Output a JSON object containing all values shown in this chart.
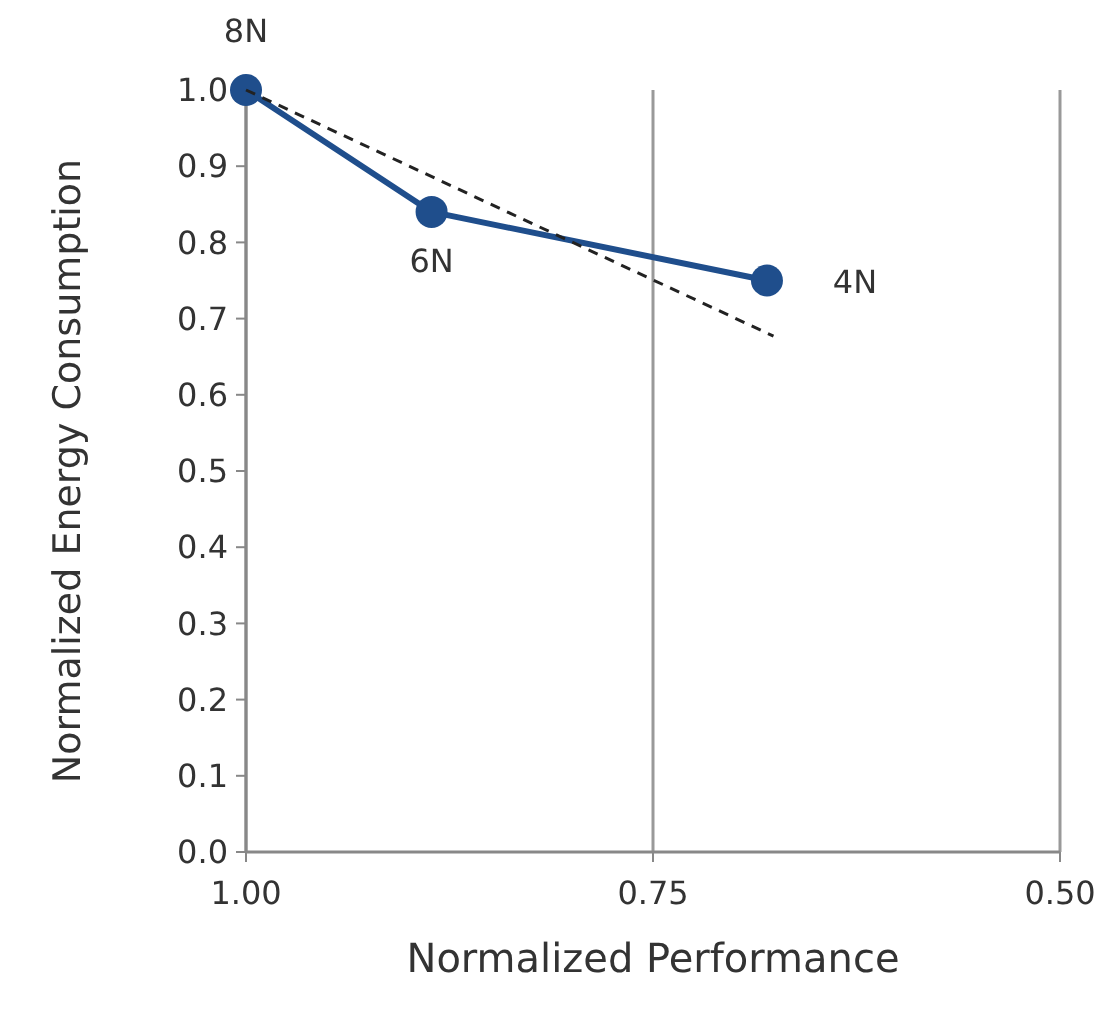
{
  "chart_data": {
    "type": "line",
    "xlabel": "Normalized Performance",
    "ylabel": "Normalized Energy Consumption",
    "xlim": [
      1.0,
      0.5
    ],
    "xticks": [
      {
        "value": 1.0,
        "label": "1.00"
      },
      {
        "value": 0.75,
        "label": "0.75"
      },
      {
        "value": 0.5,
        "label": "0.50"
      }
    ],
    "ylim": [
      0,
      1.0
    ],
    "yticks": [
      {
        "value": 0,
        "label": "0.0"
      },
      {
        "value": 0.1,
        "label": "0.1"
      },
      {
        "value": 0.2,
        "label": "0.2"
      },
      {
        "value": 0.3,
        "label": "0.3"
      },
      {
        "value": 0.4,
        "label": "0.4"
      },
      {
        "value": 0.5,
        "label": "0.5"
      },
      {
        "value": 0.6,
        "label": "0.6"
      },
      {
        "value": 0.7,
        "label": "0.7"
      },
      {
        "value": 0.8,
        "label": "0.8"
      },
      {
        "value": 0.9,
        "label": "0.9"
      },
      {
        "value": 1.0,
        "label": "1.0"
      }
    ],
    "grid": "x",
    "series": [
      {
        "color": "#1f4e8c",
        "x": [
          1.0,
          0.886,
          0.68
        ],
        "values": [
          1.0,
          0.84,
          0.75
        ],
        "marker": "circle",
        "line_style": "solid"
      },
      {
        "color": "#222222",
        "x": [
          1.0,
          0.676
        ],
        "values": [
          1.0,
          0.677
        ],
        "marker": "none",
        "line_style": "dashed"
      }
    ],
    "annotations": [
      {
        "text": "8N",
        "x": 1.0,
        "y": 1.0
      },
      {
        "text": "6N",
        "x": 0.886,
        "y": 0.84
      },
      {
        "text": "4N",
        "x": 0.68,
        "y": 0.75
      }
    ]
  }
}
